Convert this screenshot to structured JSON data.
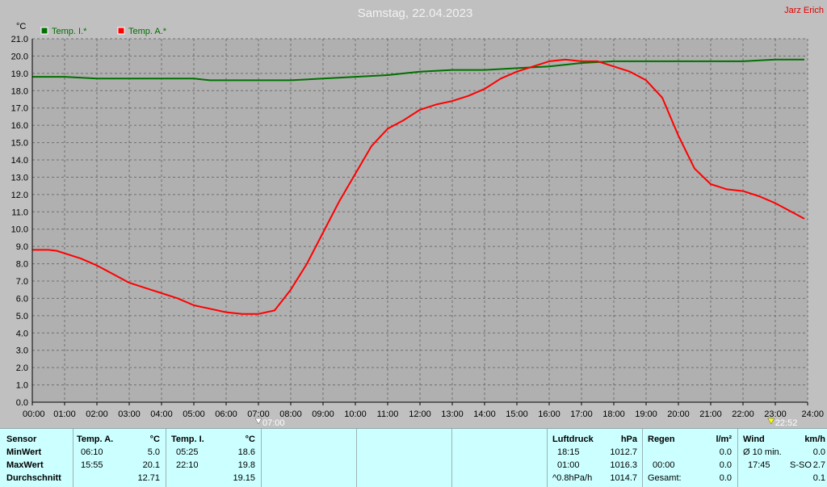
{
  "header": {
    "title": "Samstag, 22.04.2023",
    "author": "Jarz Erich"
  },
  "chart_data": {
    "type": "line",
    "ylabel": "°C",
    "ylim": [
      0,
      21
    ],
    "yticks": [
      "0.0",
      "1.0",
      "2.0",
      "3.0",
      "4.0",
      "5.0",
      "6.0",
      "7.0",
      "8.0",
      "9.0",
      "10.0",
      "11.0",
      "12.0",
      "13.0",
      "14.0",
      "15.0",
      "16.0",
      "17.0",
      "18.0",
      "19.0",
      "20.0",
      "21.0"
    ],
    "xlim": [
      0,
      24
    ],
    "xticks": [
      "00:00",
      "01:00",
      "02:00",
      "03:00",
      "04:00",
      "05:00",
      "06:00",
      "07:00",
      "08:00",
      "09:00",
      "10:00",
      "11:00",
      "12:00",
      "13:00",
      "14:00",
      "15:00",
      "16:00",
      "17:00",
      "18:00",
      "19:00",
      "20:00",
      "21:00",
      "22:00",
      "23:00",
      "24:00"
    ],
    "grid": true,
    "legend_position": "top-left",
    "markers": [
      {
        "label": "07:00",
        "hour": 7.0,
        "kind": "sunrise"
      },
      {
        "label": "22:52",
        "hour": 22.87,
        "kind": "sunset"
      }
    ],
    "series": [
      {
        "name": "Temp. I.*",
        "color": "#007000",
        "points": [
          [
            0,
            18.8
          ],
          [
            1,
            18.8
          ],
          [
            2,
            18.7
          ],
          [
            3,
            18.7
          ],
          [
            4,
            18.7
          ],
          [
            5,
            18.7
          ],
          [
            5.5,
            18.6
          ],
          [
            6,
            18.6
          ],
          [
            7,
            18.6
          ],
          [
            8,
            18.6
          ],
          [
            9,
            18.7
          ],
          [
            10,
            18.8
          ],
          [
            11,
            18.9
          ],
          [
            12,
            19.1
          ],
          [
            13,
            19.2
          ],
          [
            14,
            19.2
          ],
          [
            15,
            19.3
          ],
          [
            16,
            19.4
          ],
          [
            16.5,
            19.5
          ],
          [
            17,
            19.6
          ],
          [
            17.5,
            19.65
          ],
          [
            18,
            19.7
          ],
          [
            19,
            19.7
          ],
          [
            20,
            19.7
          ],
          [
            21,
            19.7
          ],
          [
            22,
            19.7
          ],
          [
            22.5,
            19.75
          ],
          [
            23,
            19.8
          ],
          [
            23.9,
            19.8
          ]
        ]
      },
      {
        "name": "Temp. A.*",
        "color": "#ff0000",
        "points": [
          [
            0,
            8.8
          ],
          [
            0.5,
            8.8
          ],
          [
            0.75,
            8.75
          ],
          [
            1,
            8.6
          ],
          [
            1.5,
            8.3
          ],
          [
            2,
            7.9
          ],
          [
            2.5,
            7.4
          ],
          [
            3,
            6.9
          ],
          [
            3.5,
            6.6
          ],
          [
            4,
            6.3
          ],
          [
            4.5,
            6.0
          ],
          [
            5,
            5.6
          ],
          [
            5.5,
            5.4
          ],
          [
            6,
            5.2
          ],
          [
            6.5,
            5.1
          ],
          [
            7,
            5.1
          ],
          [
            7.5,
            5.3
          ],
          [
            8,
            6.5
          ],
          [
            8.5,
            8.0
          ],
          [
            9,
            9.8
          ],
          [
            9.5,
            11.6
          ],
          [
            10,
            13.2
          ],
          [
            10.5,
            14.8
          ],
          [
            11,
            15.8
          ],
          [
            11.5,
            16.3
          ],
          [
            12,
            16.9
          ],
          [
            12.5,
            17.2
          ],
          [
            13,
            17.4
          ],
          [
            13.5,
            17.7
          ],
          [
            14,
            18.1
          ],
          [
            14.5,
            18.7
          ],
          [
            15,
            19.1
          ],
          [
            15.5,
            19.4
          ],
          [
            16,
            19.7
          ],
          [
            16.5,
            19.8
          ],
          [
            17,
            19.7
          ],
          [
            17.5,
            19.7
          ],
          [
            18,
            19.4
          ],
          [
            18.5,
            19.1
          ],
          [
            19,
            18.6
          ],
          [
            19.5,
            17.6
          ],
          [
            20,
            15.4
          ],
          [
            20.5,
            13.5
          ],
          [
            21,
            12.6
          ],
          [
            21.5,
            12.3
          ],
          [
            22,
            12.2
          ],
          [
            22.5,
            11.9
          ],
          [
            23,
            11.5
          ],
          [
            23.5,
            11.0
          ],
          [
            23.9,
            10.6
          ]
        ]
      }
    ]
  },
  "table": {
    "row_labels": {
      "sensor": "Sensor",
      "min": "MinWert",
      "max": "MaxWert",
      "avg": "Durchschnitt"
    },
    "temp_a": {
      "header": "Temp. A.",
      "unit": "°C",
      "min_time": "06:10",
      "min_value": "5.0",
      "max_time": "15:55",
      "max_value": "20.1",
      "avg_value": "12.71"
    },
    "temp_i": {
      "header": "Temp. I.",
      "unit": "°C",
      "min_time": "05:25",
      "min_value": "18.6",
      "max_time": "22:10",
      "max_value": "19.8",
      "avg_value": "19.15"
    },
    "pressure": {
      "header": "Luftdruck",
      "unit": "hPa",
      "min_time": "18:15",
      "min_value": "1012.7",
      "max_time": "01:00",
      "max_value": "1016.3",
      "trend_label": "^0.8hPa/h",
      "avg_value": "1014.7"
    },
    "rain": {
      "header": "Regen",
      "unit": "l/m²",
      "max_time": "00:00",
      "max_value": "0.0",
      "total_label": "Gesamt:",
      "total_value": "0.0",
      "first_value": "0.0"
    },
    "wind": {
      "header": "Wind",
      "unit": "km/h",
      "min_label": "Ø 10 min.",
      "min_value": "0.0",
      "max_time": "17:45",
      "max_dir": "S-SO",
      "max_value": "2.7",
      "avg_value": "0.1"
    }
  }
}
